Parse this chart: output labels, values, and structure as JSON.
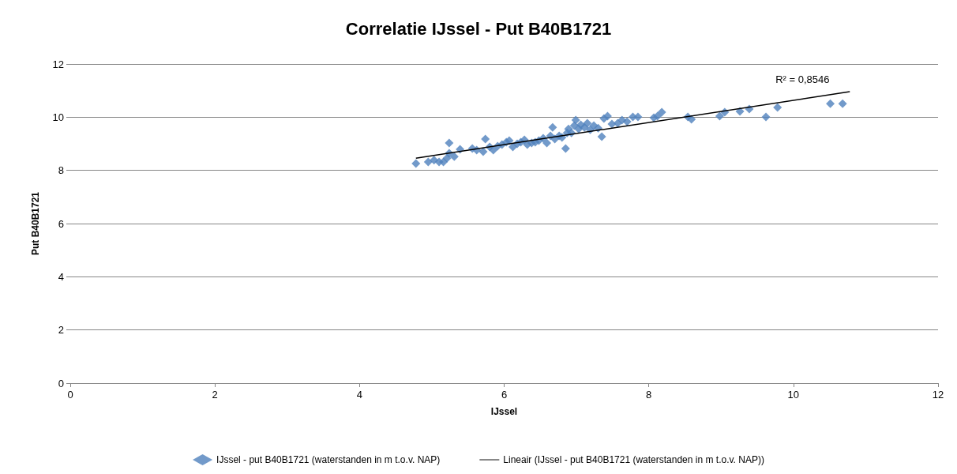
{
  "chart_data": {
    "type": "scatter",
    "title": "Correlatie IJssel - Put B40B1721",
    "xlabel": "IJssel",
    "ylabel": "Put B40B1721",
    "xlim": [
      0,
      12
    ],
    "ylim": [
      0,
      12
    ],
    "xticks": [
      0,
      2,
      4,
      6,
      8,
      10,
      12
    ],
    "yticks": [
      0,
      2,
      4,
      6,
      8,
      10,
      12
    ],
    "grid": "y",
    "legend": "bottom",
    "marker": "diamond",
    "series": [
      {
        "name": "IJssel - put B40B1721 (waterstanden in m t.o.v. NAP)",
        "color": "#4f81bd",
        "x": [
          4.78,
          4.95,
          5.03,
          5.1,
          5.16,
          5.21,
          5.24,
          5.24,
          5.31,
          5.39,
          5.56,
          5.62,
          5.71,
          5.74,
          5.8,
          5.85,
          5.91,
          5.97,
          6.03,
          6.07,
          6.12,
          6.18,
          6.23,
          6.28,
          6.32,
          6.38,
          6.43,
          6.48,
          6.54,
          6.59,
          6.64,
          6.67,
          6.7,
          6.76,
          6.8,
          6.85,
          6.87,
          6.89,
          6.93,
          6.97,
          6.99,
          7.03,
          7.06,
          7.11,
          7.15,
          7.19,
          7.24,
          7.3,
          7.35,
          7.38,
          7.43,
          7.49,
          7.57,
          7.63,
          7.7,
          7.78,
          7.85,
          8.07,
          8.12,
          8.18,
          8.54,
          8.59,
          8.98,
          9.05,
          9.26,
          9.39,
          9.62,
          9.78,
          10.51,
          10.68
        ],
        "values": [
          8.26,
          8.32,
          8.38,
          8.32,
          8.32,
          8.46,
          8.64,
          9.03,
          8.52,
          8.79,
          8.82,
          8.76,
          8.7,
          9.18,
          8.88,
          8.76,
          8.91,
          8.97,
          9.06,
          9.12,
          8.88,
          9.0,
          9.06,
          9.15,
          8.97,
          9.03,
          9.06,
          9.12,
          9.21,
          9.03,
          9.3,
          9.62,
          9.18,
          9.3,
          9.24,
          8.82,
          9.41,
          9.56,
          9.41,
          9.68,
          9.89,
          9.56,
          9.71,
          9.62,
          9.77,
          9.53,
          9.68,
          9.59,
          9.27,
          9.95,
          10.04,
          9.74,
          9.77,
          9.89,
          9.83,
          10.01,
          10.01,
          9.98,
          10.04,
          10.19,
          10.01,
          9.92,
          10.04,
          10.19,
          10.22,
          10.31,
          10.01,
          10.37,
          10.51,
          10.51
        ]
      },
      {
        "name": "Lineair (IJssel - put B40B1721 (waterstanden in m t.o.v. NAP))",
        "type": "line",
        "color": "#000000",
        "line_style": "solid",
        "marker": "none",
        "x": [
          4.78,
          10.78
        ],
        "values": [
          8.46,
          10.96
        ]
      }
    ],
    "annotations": [
      "R² = 0,8546"
    ]
  }
}
